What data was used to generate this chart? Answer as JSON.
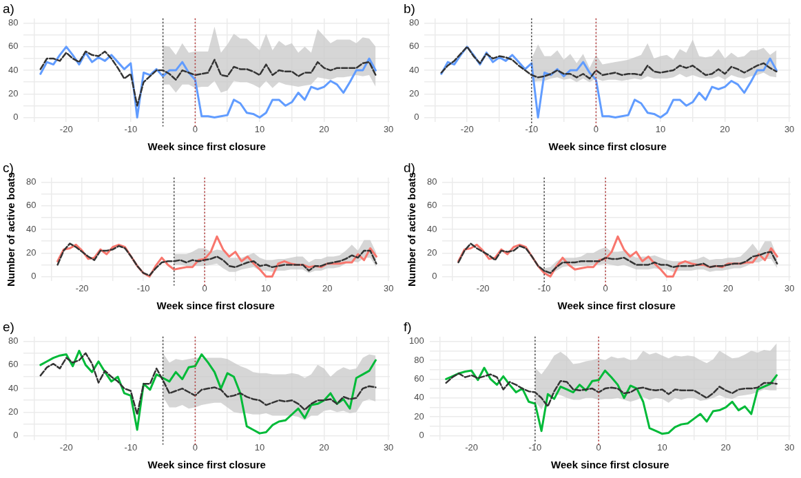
{
  "chart_data": [
    {
      "type": "line",
      "title": "a)",
      "xlabel": "Week since first closure",
      "x": [
        -24,
        -23,
        -22,
        -21,
        -20,
        -19,
        -18,
        -17,
        -16,
        -15,
        -14,
        -13,
        -12,
        -11,
        -10,
        -9,
        -8,
        -7,
        -6,
        -5,
        -4,
        -3,
        -2,
        -1,
        0,
        1,
        2,
        3,
        4,
        5,
        6,
        7,
        8,
        9,
        10,
        11,
        12,
        13,
        14,
        15,
        16,
        17,
        18,
        19,
        20,
        21,
        22,
        23,
        24,
        25,
        26,
        27,
        28
      ],
      "xlim": [
        -26.6,
        30.2
      ],
      "xticks": [
        {
          "value": -25,
          "label": null
        },
        -20,
        {
          "value": -15,
          "label": null
        },
        -10,
        {
          "value": -5,
          "label": null
        },
        0,
        {
          "value": 5,
          "label": null
        },
        10,
        {
          "value": 15,
          "label": null
        },
        20,
        {
          "value": 25,
          "label": null
        },
        30
      ],
      "ylim": [
        -4,
        84
      ],
      "yticks": [
        0,
        {
          "value": 10,
          "label": null
        },
        20,
        {
          "value": 30,
          "label": null
        },
        40,
        {
          "value": 50,
          "label": null
        },
        60,
        {
          "value": 70,
          "label": null
        },
        80
      ],
      "grid": true,
      "legend": false,
      "marker": "none",
      "ref_lines": [
        {
          "axis": "x",
          "value": -5,
          "color": "#333333",
          "line_style": "dotted"
        },
        {
          "axis": "x",
          "value": 0,
          "color": "#b03030",
          "line_style": "dotted"
        }
      ],
      "series": [
        {
          "color": "#619cff",
          "line_style": "solid",
          "values": [
            37,
            47,
            45,
            53,
            60,
            53,
            45,
            55,
            47,
            51,
            48,
            53,
            47,
            41,
            46,
            0,
            38,
            36,
            41,
            35,
            40,
            40,
            47,
            38,
            32,
            1,
            1,
            0,
            1,
            2,
            15,
            12,
            4,
            3,
            0,
            4,
            15,
            15,
            10,
            13,
            21,
            15,
            26,
            24,
            26,
            31,
            28,
            21,
            30,
            40,
            40,
            50,
            40
          ]
        },
        {
          "color": "#333333",
          "line_style": "dashed",
          "values": [
            41,
            50,
            50,
            48,
            55,
            50,
            47,
            56,
            53,
            52,
            56,
            50,
            42,
            33,
            37,
            10,
            30,
            35,
            40,
            40,
            37,
            32,
            40,
            38,
            36,
            37,
            38,
            49,
            36,
            35,
            43,
            41,
            41,
            39,
            36,
            45,
            36,
            40,
            39,
            39,
            35,
            38,
            38,
            47,
            42,
            40,
            42,
            42,
            42,
            42,
            46,
            47,
            36
          ],
          "upper": [
            null,
            null,
            null,
            null,
            null,
            null,
            null,
            null,
            null,
            null,
            null,
            null,
            null,
            null,
            null,
            null,
            null,
            null,
            null,
            61,
            60,
            53,
            63,
            55,
            56,
            56,
            56,
            77,
            55,
            62,
            71,
            67,
            67,
            62,
            57,
            71,
            57,
            65,
            61,
            63,
            55,
            60,
            55,
            75,
            69,
            63,
            66,
            66,
            66,
            63,
            68,
            67,
            60
          ],
          "lower": [
            null,
            null,
            null,
            null,
            null,
            null,
            null,
            null,
            null,
            null,
            null,
            null,
            null,
            null,
            null,
            null,
            null,
            null,
            null,
            28,
            28,
            21,
            28,
            28,
            25,
            26,
            26,
            31,
            21,
            23,
            31,
            30,
            30,
            28,
            25,
            31,
            25,
            30,
            28,
            27,
            26,
            27,
            28,
            34,
            33,
            32,
            34,
            34,
            35,
            36,
            35,
            36,
            26
          ]
        }
      ]
    },
    {
      "type": "line",
      "title": "b)",
      "xlabel": "Week since first closure",
      "x": [
        -24,
        -23,
        -22,
        -21,
        -20,
        -19,
        -18,
        -17,
        -16,
        -15,
        -14,
        -13,
        -12,
        -11,
        -10,
        -9,
        -8,
        -7,
        -6,
        -5,
        -4,
        -3,
        -2,
        -1,
        0,
        1,
        2,
        3,
        4,
        5,
        6,
        7,
        8,
        9,
        10,
        11,
        12,
        13,
        14,
        15,
        16,
        17,
        18,
        19,
        20,
        21,
        22,
        23,
        24,
        25,
        26,
        27,
        28
      ],
      "xlim": [
        -26.6,
        30.2
      ],
      "xticks": [
        {
          "value": -25,
          "label": null
        },
        -20,
        {
          "value": -15,
          "label": null
        },
        -10,
        {
          "value": -5,
          "label": null
        },
        0,
        {
          "value": 5,
          "label": null
        },
        10,
        {
          "value": 15,
          "label": null
        },
        20,
        {
          "value": 25,
          "label": null
        },
        30
      ],
      "ylim": [
        -4,
        84
      ],
      "yticks": [
        0,
        {
          "value": 10,
          "label": null
        },
        20,
        {
          "value": 30,
          "label": null
        },
        40,
        {
          "value": 50,
          "label": null
        },
        60,
        {
          "value": 70,
          "label": null
        },
        80
      ],
      "grid": true,
      "legend": false,
      "marker": "none",
      "ref_lines": [
        {
          "axis": "x",
          "value": -10,
          "color": "#333333",
          "line_style": "dotted"
        },
        {
          "axis": "x",
          "value": 0,
          "color": "#b03030",
          "line_style": "dotted"
        }
      ],
      "series": [
        {
          "color": "#619cff",
          "line_style": "solid",
          "values": [
            37,
            47,
            45,
            53,
            60,
            53,
            45,
            55,
            47,
            51,
            48,
            53,
            47,
            41,
            46,
            0,
            38,
            36,
            41,
            35,
            40,
            40,
            47,
            38,
            32,
            1,
            1,
            0,
            1,
            2,
            15,
            12,
            4,
            3,
            0,
            4,
            15,
            15,
            10,
            13,
            21,
            15,
            26,
            24,
            26,
            31,
            28,
            21,
            30,
            40,
            40,
            50,
            40
          ]
        },
        {
          "color": "#333333",
          "line_style": "dashed",
          "values": [
            38,
            44,
            48,
            54,
            60,
            52,
            46,
            54,
            50,
            52,
            51,
            49,
            44,
            40,
            36,
            34,
            35,
            37,
            40,
            37,
            37,
            34,
            37,
            33,
            40,
            36,
            37,
            38,
            36,
            37,
            37,
            36,
            44,
            39,
            38,
            39,
            40,
            44,
            42,
            44,
            40,
            36,
            37,
            41,
            37,
            43,
            41,
            38,
            41,
            44,
            46,
            42,
            39
          ],
          "upper": [
            null,
            null,
            null,
            null,
            null,
            null,
            null,
            null,
            null,
            null,
            null,
            null,
            null,
            null,
            50,
            62,
            52,
            52,
            57,
            49,
            54,
            46,
            54,
            42,
            53,
            45,
            46,
            47,
            48,
            49,
            51,
            53,
            63,
            50,
            52,
            53,
            49,
            58,
            55,
            66,
            52,
            51,
            52,
            58,
            50,
            55,
            51,
            52,
            57,
            57,
            59,
            53,
            57
          ],
          "lower": [
            null,
            null,
            null,
            null,
            null,
            null,
            null,
            null,
            null,
            null,
            null,
            null,
            null,
            null,
            30,
            31,
            31,
            33,
            34,
            32,
            33,
            30,
            33,
            30,
            33,
            31,
            32,
            32,
            31,
            32,
            33,
            32,
            35,
            33,
            33,
            33,
            34,
            37,
            34,
            36,
            34,
            33,
            33,
            35,
            32,
            36,
            34,
            33,
            35,
            36,
            38,
            35,
            34
          ]
        }
      ]
    },
    {
      "type": "line",
      "title": "c)",
      "xlabel": "Week since first closure",
      "ylabel": "Number of active boats",
      "x": [
        -24,
        -23,
        -22,
        -21,
        -20,
        -19,
        -18,
        -17,
        -16,
        -15,
        -14,
        -13,
        -12,
        -11,
        -10,
        -9,
        -8,
        -7,
        -6,
        -5,
        -4,
        -3,
        -2,
        -1,
        0,
        1,
        2,
        3,
        4,
        5,
        6,
        7,
        8,
        9,
        10,
        11,
        12,
        13,
        14,
        15,
        16,
        17,
        18,
        19,
        20,
        21,
        22,
        23,
        24,
        25,
        26,
        27,
        28
      ],
      "xlim": [
        -26.6,
        30.2
      ],
      "xticks": [
        {
          "value": -25,
          "label": null
        },
        -20,
        {
          "value": -15,
          "label": null
        },
        -10,
        {
          "value": -5,
          "label": null
        },
        0,
        {
          "value": 5,
          "label": null
        },
        10,
        {
          "value": 15,
          "label": null
        },
        20,
        {
          "value": 25,
          "label": null
        },
        30
      ],
      "ylim": [
        -4,
        84
      ],
      "yticks": [
        0,
        {
          "value": 10,
          "label": null
        },
        20,
        {
          "value": 30,
          "label": null
        },
        40,
        {
          "value": 50,
          "label": null
        },
        60,
        {
          "value": 70,
          "label": null
        },
        80
      ],
      "grid": true,
      "legend": false,
      "marker": "none",
      "ref_lines": [
        {
          "axis": "x",
          "value": -5,
          "color": "#333333",
          "line_style": "dotted"
        },
        {
          "axis": "x",
          "value": 0,
          "color": "#b03030",
          "line_style": "dotted"
        }
      ],
      "series": [
        {
          "color": "#f8766d",
          "line_style": "solid",
          "values": [
            13,
            23,
            24,
            27,
            22,
            15,
            16,
            23,
            19,
            25,
            27,
            25,
            17,
            9,
            3,
            0,
            9,
            16,
            10,
            6,
            7,
            8,
            8,
            14,
            15,
            21,
            34,
            23,
            17,
            21,
            13,
            17,
            11,
            6,
            0,
            0,
            11,
            13,
            11,
            10,
            10,
            8,
            9,
            8,
            11,
            11,
            11,
            12,
            12,
            19,
            14,
            24,
            17
          ]
        },
        {
          "color": "#333333",
          "line_style": "dashed",
          "values": [
            10,
            22,
            28,
            25,
            21,
            17,
            14,
            22,
            22,
            23,
            26,
            24,
            17,
            9,
            3,
            1,
            7,
            12,
            13,
            13,
            14,
            12,
            14,
            13,
            14,
            15,
            17,
            14,
            9,
            8,
            10,
            12,
            13,
            9,
            10,
            8,
            9,
            10,
            10,
            10,
            10,
            5,
            9,
            9,
            11,
            12,
            13,
            15,
            18,
            16,
            22,
            22,
            11
          ],
          "upper": [
            null,
            null,
            null,
            null,
            null,
            null,
            null,
            null,
            null,
            null,
            null,
            null,
            null,
            null,
            null,
            null,
            null,
            null,
            null,
            19,
            19,
            19,
            21,
            24,
            24,
            21,
            23,
            22,
            16,
            16,
            16,
            18,
            20,
            16,
            14,
            14,
            15,
            15,
            16,
            17,
            17,
            12,
            15,
            15,
            17,
            17,
            18,
            22,
            27,
            22,
            31,
            31,
            20
          ],
          "lower": [
            null,
            null,
            null,
            null,
            null,
            null,
            null,
            null,
            null,
            null,
            null,
            null,
            null,
            null,
            null,
            null,
            null,
            null,
            null,
            10,
            10,
            9,
            9,
            9,
            9,
            10,
            11,
            7,
            4,
            4,
            6,
            7,
            8,
            5,
            5,
            4,
            5,
            5,
            6,
            6,
            6,
            3,
            5,
            5,
            7,
            7,
            8,
            11,
            13,
            12,
            16,
            16,
            8
          ]
        }
      ]
    },
    {
      "type": "line",
      "title": "d)",
      "xlabel": "Week since first closure",
      "ylabel": "Number of active boats",
      "x": [
        -24,
        -23,
        -22,
        -21,
        -20,
        -19,
        -18,
        -17,
        -16,
        -15,
        -14,
        -13,
        -12,
        -11,
        -10,
        -9,
        -8,
        -7,
        -6,
        -5,
        -4,
        -3,
        -2,
        -1,
        0,
        1,
        2,
        3,
        4,
        5,
        6,
        7,
        8,
        9,
        10,
        11,
        12,
        13,
        14,
        15,
        16,
        17,
        18,
        19,
        20,
        21,
        22,
        23,
        24,
        25,
        26,
        27,
        28
      ],
      "xlim": [
        -26.6,
        30.2
      ],
      "xticks": [
        {
          "value": -25,
          "label": null
        },
        -20,
        {
          "value": -15,
          "label": null
        },
        -10,
        {
          "value": -5,
          "label": null
        },
        0,
        {
          "value": 5,
          "label": null
        },
        10,
        {
          "value": 15,
          "label": null
        },
        20,
        {
          "value": 25,
          "label": null
        },
        30
      ],
      "ylim": [
        -4,
        84
      ],
      "yticks": [
        0,
        {
          "value": 10,
          "label": null
        },
        20,
        {
          "value": 30,
          "label": null
        },
        40,
        {
          "value": 50,
          "label": null
        },
        60,
        {
          "value": 70,
          "label": null
        },
        80
      ],
      "grid": true,
      "legend": false,
      "marker": "none",
      "ref_lines": [
        {
          "axis": "x",
          "value": -10,
          "color": "#333333",
          "line_style": "dotted"
        },
        {
          "axis": "x",
          "value": 0,
          "color": "#b03030",
          "line_style": "dotted"
        }
      ],
      "series": [
        {
          "color": "#f8766d",
          "line_style": "solid",
          "values": [
            13,
            23,
            24,
            27,
            22,
            15,
            16,
            23,
            19,
            25,
            27,
            25,
            17,
            9,
            3,
            0,
            9,
            16,
            10,
            6,
            7,
            8,
            8,
            14,
            15,
            21,
            34,
            23,
            17,
            21,
            13,
            17,
            11,
            6,
            0,
            0,
            11,
            13,
            11,
            10,
            10,
            8,
            9,
            8,
            11,
            11,
            11,
            12,
            12,
            19,
            14,
            24,
            17
          ]
        },
        {
          "color": "#333333",
          "line_style": "dashed",
          "values": [
            12,
            22,
            28,
            24,
            21,
            18,
            14,
            22,
            21,
            22,
            26,
            24,
            17,
            9,
            5,
            3,
            8,
            12,
            12,
            12,
            13,
            13,
            13,
            13,
            16,
            15,
            15,
            16,
            13,
            10,
            10,
            10,
            12,
            10,
            10,
            8,
            9,
            9,
            9,
            10,
            11,
            8,
            9,
            9,
            10,
            11,
            11,
            13,
            17,
            18,
            20,
            21,
            11
          ],
          "upper": [
            null,
            null,
            null,
            null,
            null,
            null,
            null,
            null,
            null,
            null,
            null,
            null,
            null,
            null,
            7,
            8,
            13,
            16,
            16,
            16,
            17,
            20,
            20,
            23,
            25,
            21,
            21,
            22,
            19,
            16,
            17,
            17,
            18,
            16,
            14,
            13,
            13,
            13,
            14,
            15,
            17,
            14,
            15,
            15,
            16,
            16,
            17,
            22,
            28,
            21,
            30,
            30,
            17
          ],
          "lower": [
            null,
            null,
            null,
            null,
            null,
            null,
            null,
            null,
            null,
            null,
            null,
            null,
            null,
            null,
            2,
            2,
            5,
            8,
            9,
            9,
            9,
            9,
            10,
            10,
            11,
            10,
            9,
            10,
            8,
            6,
            6,
            6,
            7,
            6,
            6,
            4,
            5,
            5,
            5,
            6,
            6,
            4,
            5,
            5,
            6,
            7,
            7,
            9,
            12,
            12,
            15,
            15,
            7
          ]
        }
      ]
    },
    {
      "type": "line",
      "title": "e)",
      "xlabel": "Week since first closure",
      "x": [
        -24,
        -23,
        -22,
        -21,
        -20,
        -19,
        -18,
        -17,
        -16,
        -15,
        -14,
        -13,
        -12,
        -11,
        -10,
        -9,
        -8,
        -7,
        -6,
        -5,
        -4,
        -3,
        -2,
        -1,
        0,
        1,
        2,
        3,
        4,
        5,
        6,
        7,
        8,
        9,
        10,
        11,
        12,
        13,
        14,
        15,
        16,
        17,
        18,
        19,
        20,
        21,
        22,
        23,
        24,
        25,
        26,
        27,
        28
      ],
      "xlim": [
        -26.6,
        30.2
      ],
      "xticks": [
        {
          "value": -25,
          "label": null
        },
        -20,
        {
          "value": -15,
          "label": null
        },
        -10,
        {
          "value": -5,
          "label": null
        },
        0,
        {
          "value": 5,
          "label": null
        },
        10,
        {
          "value": 15,
          "label": null
        },
        20,
        {
          "value": 25,
          "label": null
        },
        30
      ],
      "ylim": [
        -4,
        84
      ],
      "yticks": [
        0,
        {
          "value": 10,
          "label": null
        },
        20,
        {
          "value": 30,
          "label": null
        },
        40,
        {
          "value": 50,
          "label": null
        },
        60,
        {
          "value": 70,
          "label": null
        },
        80
      ],
      "grid": true,
      "legend": false,
      "marker": "none",
      "ref_lines": [
        {
          "axis": "x",
          "value": -5,
          "color": "#333333",
          "line_style": "dotted"
        },
        {
          "axis": "x",
          "value": 0,
          "color": "#b03030",
          "line_style": "dotted"
        }
      ],
      "series": [
        {
          "color": "#00ba38",
          "line_style": "solid",
          "values": [
            60,
            63,
            66,
            68,
            69,
            59,
            72,
            60,
            54,
            63,
            54,
            46,
            50,
            36,
            34,
            5,
            44,
            39,
            52,
            49,
            46,
            54,
            48,
            58,
            59,
            69,
            62,
            54,
            40,
            53,
            50,
            36,
            8,
            5,
            2,
            3,
            9,
            12,
            13,
            18,
            23,
            15,
            26,
            27,
            30,
            36,
            27,
            31,
            23,
            49,
            52,
            55,
            64
          ]
        },
        {
          "color": "#333333",
          "line_style": "dashed",
          "values": [
            51,
            58,
            61,
            57,
            66,
            62,
            64,
            70,
            61,
            45,
            55,
            50,
            46,
            40,
            38,
            18,
            44,
            44,
            57,
            47,
            36,
            38,
            40,
            37,
            34,
            39,
            40,
            41,
            39,
            33,
            34,
            36,
            33,
            31,
            30,
            26,
            28,
            30,
            29,
            30,
            27,
            22,
            27,
            30,
            30,
            31,
            27,
            33,
            31,
            32,
            40,
            42,
            41
          ],
          "upper": [
            null,
            null,
            null,
            null,
            null,
            null,
            null,
            null,
            null,
            null,
            null,
            null,
            null,
            null,
            null,
            null,
            null,
            null,
            null,
            70,
            62,
            65,
            64,
            65,
            66,
            66,
            66,
            66,
            66,
            65,
            62,
            59,
            57,
            54,
            53,
            53,
            52,
            52,
            52,
            53,
            52,
            49,
            52,
            60,
            57,
            50,
            55,
            58,
            56,
            57,
            66,
            69,
            68
          ],
          "lower": [
            null,
            null,
            null,
            null,
            null,
            null,
            null,
            null,
            null,
            null,
            null,
            null,
            null,
            null,
            null,
            null,
            null,
            null,
            null,
            33,
            24,
            24,
            26,
            23,
            24,
            26,
            27,
            28,
            28,
            24,
            20,
            19,
            19,
            18,
            18,
            19,
            17,
            17,
            17,
            17,
            16,
            13,
            17,
            17,
            21,
            22,
            20,
            21,
            19,
            20,
            29,
            31,
            29
          ]
        }
      ]
    },
    {
      "type": "line",
      "title": "f)",
      "xlabel": "Week since first closure",
      "x": [
        -24,
        -23,
        -22,
        -21,
        -20,
        -19,
        -18,
        -17,
        -16,
        -15,
        -14,
        -13,
        -12,
        -11,
        -10,
        -9,
        -8,
        -7,
        -6,
        -5,
        -4,
        -3,
        -2,
        -1,
        0,
        1,
        2,
        3,
        4,
        5,
        6,
        7,
        8,
        9,
        10,
        11,
        12,
        13,
        14,
        15,
        16,
        17,
        18,
        19,
        20,
        21,
        22,
        23,
        24,
        25,
        26,
        27,
        28
      ],
      "xlim": [
        -26.6,
        30.2
      ],
      "xticks": [
        {
          "value": -25,
          "label": null
        },
        -20,
        {
          "value": -15,
          "label": null
        },
        -10,
        {
          "value": -5,
          "label": null
        },
        0,
        {
          "value": 5,
          "label": null
        },
        10,
        {
          "value": 15,
          "label": null
        },
        20,
        {
          "value": 25,
          "label": null
        },
        30
      ],
      "ylim": [
        -5,
        105
      ],
      "yticks": [
        0,
        {
          "value": 10,
          "label": null
        },
        20,
        {
          "value": 30,
          "label": null
        },
        40,
        {
          "value": 50,
          "label": null
        },
        60,
        {
          "value": 70,
          "label": null
        },
        80,
        {
          "value": 90,
          "label": null
        },
        100
      ],
      "grid": true,
      "legend": false,
      "marker": "none",
      "ref_lines": [
        {
          "axis": "x",
          "value": -10,
          "color": "#333333",
          "line_style": "dotted"
        },
        {
          "axis": "x",
          "value": 0,
          "color": "#b03030",
          "line_style": "dotted"
        }
      ],
      "series": [
        {
          "color": "#00ba38",
          "line_style": "solid",
          "values": [
            60,
            63,
            66,
            68,
            69,
            59,
            72,
            60,
            54,
            63,
            54,
            46,
            50,
            36,
            34,
            5,
            44,
            39,
            52,
            49,
            46,
            54,
            48,
            58,
            59,
            69,
            62,
            54,
            40,
            53,
            50,
            36,
            8,
            5,
            2,
            3,
            9,
            12,
            13,
            18,
            23,
            15,
            26,
            27,
            30,
            36,
            27,
            31,
            23,
            49,
            52,
            55,
            64
          ]
        },
        {
          "color": "#333333",
          "line_style": "dashed",
          "values": [
            56,
            62,
            66,
            62,
            64,
            61,
            63,
            65,
            62,
            49,
            57,
            54,
            50,
            47,
            46,
            40,
            31,
            47,
            58,
            57,
            49,
            48,
            49,
            50,
            46,
            50,
            51,
            50,
            45,
            46,
            50,
            51,
            49,
            48,
            49,
            44,
            49,
            48,
            48,
            48,
            44,
            40,
            45,
            52,
            48,
            45,
            49,
            50,
            50,
            51,
            56,
            56,
            55
          ],
          "upper": [
            null,
            null,
            null,
            null,
            null,
            null,
            null,
            null,
            null,
            null,
            null,
            null,
            null,
            null,
            72,
            65,
            74,
            85,
            89,
            84,
            76,
            77,
            79,
            80,
            82,
            80,
            84,
            82,
            83,
            80,
            81,
            90,
            86,
            88,
            85,
            82,
            85,
            84,
            85,
            84,
            80,
            77,
            81,
            90,
            86,
            82,
            83,
            86,
            90,
            88,
            91,
            90,
            98
          ],
          "lower": [
            null,
            null,
            null,
            null,
            null,
            null,
            null,
            null,
            null,
            null,
            null,
            null,
            null,
            null,
            36,
            28,
            40,
            44,
            43,
            40,
            38,
            38,
            40,
            40,
            38,
            39,
            39,
            40,
            38,
            36,
            38,
            41,
            38,
            40,
            39,
            35,
            40,
            38,
            40,
            40,
            37,
            38,
            40,
            43,
            40,
            39,
            42,
            43,
            44,
            46,
            49,
            48,
            48
          ]
        }
      ]
    }
  ]
}
